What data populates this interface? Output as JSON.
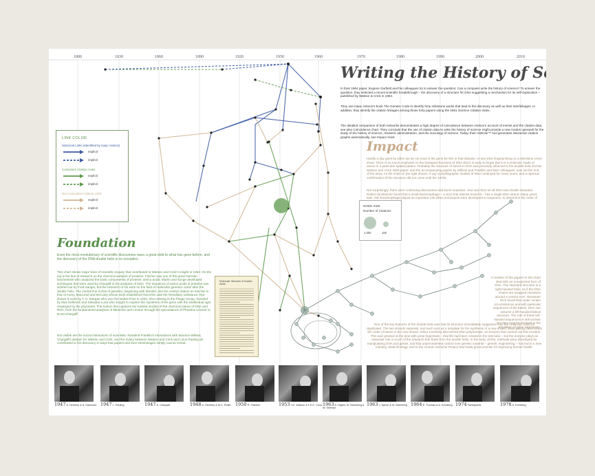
{
  "title": "Writing the History of Science",
  "timeline": [
    "1800",
    "1830",
    "1860",
    "1890",
    "1920",
    "1950",
    "1960",
    "1970",
    "1980",
    "1990",
    "2000",
    "2010"
  ],
  "intro": [
    "In their 1964 paper, Eugene Garfield and his colleagues try to answer the question: Can a computer write the history of science? To answer the question, they selected a recent scientific breakthrough – the discovery of a structure for DNA suggesting a mechanism for its self-duplication – published by Watson & Crick in 1953.",
    "They use Isaac Asimov's book The Genetic Code to identify forty milestone works that lead to the discovery as well as their interlinkages. In addition, they identify the citation linkages among those forty papers using the 1961 Science Citation Index.",
    "The detailed comparison of both networks demonstrates a high degree of coincidence between Asimov's account of events and the citation data, see also Coincidence chart. They conclude that the use of citation data to write the history of science might provide a new modus operandi for the study of the history of science, research administration, and the sociology of science. Today, their HistCite™ tool generates interactive citation graphs automatically, see Impact chart."
  ],
  "impact": {
    "heading": "Impact",
    "p1": "Hardly a day goes by when we do not read of the gene for this or that disease, or see DNA fingerprinting on a television crime show. There is so much emphasis on the biological functions of DNA that it is easy to forget that it is a molecule made of atoms in a particular spatial pattern. Probably the structure of atoms in DNA was precisely what led to the double helix but the Watson and Crick 1953 paper, and the accompanying papers by Wilkins and Franklin and their colleagues, was not the end of the story. As the chart on the right shows, X-ray crystallographic studies of DNA continued for many years, and a rigorous confirmation of the structure did not come until the 1970s.",
    "p2": "Not surprisingly, there were continuing discoveries and some surprises. One was that not all DNA was double stranded. Robert Sinsheimer found that a small bacteriophage – a virus that attacks bacteria – has a single DNA strand. Many years later, this bacteriophage played an important role when techniques were developed to sequence, to determine the order of the bases in DNA.",
    "p3": "A number of the papers in this chart deal with an unexpected form of DNA. The standard structure is a right-handed helix, as if the DNA chains are wrapped clockwise around a central core. Alexander Rich found that under certain circumstances and with particular sequences of the bases, DNA can assume a left-handed helical structure. The role of these left-handed sequences is still unclear but they may be involved in the regulation of gene expression.",
    "p4": "One of the key features of the double helix was that its structure immediately suggested how the molecule could be duplicated. The two strands separate, and each acts as a template for the synthesis of a new strand. Base pairing determines the order of bases in the new strand. Arthur Kornberg discovered DNA polymerase, an enzyme that carried out that reaction. This was greeted at the time with great hyperbole – that life had been created in the test tube – but the enzyme plays an essential role in much of the research that flows from the double helix. In the early 1970s, methods were developed for manipulating DNA and genes, and that unprecedented control over genetic material – genetic engineering – has led to a new industry, biotechnology, and to the Human Genome Project that holds great promise for improving human health."
  },
  "foundation": {
    "heading": "Foundation",
    "p1": "Even the most revolutionary of scientific discoveries owes a great debt to what has gone before, and the discovery of the DNA double helix is no exception.",
    "p2": "This chart shows major lines of scientific enquiry that contributed to Watson and Crick's insight in 1953. On the top is the line of research on the chemical analysis of proteins. Fischer was one of the great German biochemists who analyzed the basic components of proteins: amino acids. Martin and Synge developed techniques that were used by Chargaff in his analyses of DNA. The sequence of amino acids in proteins was worked out by Fred Sanger, but the research of his work on the field of molecular genetics came after the double helix. The central line is that of genetics, beginning with Mendel, and the central citation on this line is that of Avery, MacLeod and McCarty whose work established that DNA was the hereditary substance. Not shown is work by T. H. Morgan who won the Nobel Prize in 1933. Also missing is the Phage Group, founded by Max Delbrück and Salvador Luria who sought to explore the mysteries of the gene with the intellectual rigor employed by the physicists. The bottom line captures the earliest studies of the chemical nature of DNA and RNA, from the fundamental analyses of Miescher and Levene through the speculations of Phoebus Levene to Ernst Chargaff.",
    "p3": "Not visible are the social interactions of scientists. Rosalind Franklin's interactions with Maurice Wilkins, Chargaff's disdain for Watson and Crick, and the rivalry between Watson and Crick and Linus Pauling all contributed to the discovery in ways that papers and their interlinkages simply cannot reveal."
  },
  "legend": {
    "heading": "LINK COLOR",
    "groups": [
      {
        "label": "Historical Links (Identified by Isaac Asimov)",
        "color": "#3b5aa3",
        "explicit": "explicit",
        "implicit": "implicit"
      },
      {
        "label": "Coincident Citation Links",
        "color": "#5e9a4e",
        "explicit": "explicit",
        "implicit": "implicit"
      },
      {
        "label": "Non-Coincident Citation Links",
        "color": "#cfb592",
        "explicit": "explicit",
        "implicit": "implicit"
      }
    ]
  },
  "node_size": {
    "title": "NODE SIZE",
    "subtitle": "Number of Citations",
    "label_large": "1,000",
    "label_small": "100"
  },
  "document": {
    "title": "Molecular Structure of Nucleic Acids"
  },
  "photos": [
    {
      "year": "1947",
      "caption": "A. Hershey & A. Gassman"
    },
    {
      "year": "1947",
      "caption": "L. Pauling"
    },
    {
      "year": "1947",
      "caption": "E. Chargaff"
    },
    {
      "year": "1948",
      "caption": "A. Hershey & M.C. Roller"
    },
    {
      "year": "1950",
      "caption": "R. Franklin"
    },
    {
      "year": "1953",
      "caption": "J.D. Watson & F.H.C. Crick"
    },
    {
      "year": "1963",
      "caption": "A. Hayes, M. Nirenberg & W. Sherwin"
    },
    {
      "year": "1963",
      "caption": "J. Spizer & M. Nirenberg"
    },
    {
      "year": "1964",
      "caption": "E. Thomas & A. Kornberg"
    },
    {
      "year": "1974",
      "caption": "Participants"
    },
    {
      "year": "1978",
      "caption": "A. Kornberg"
    }
  ],
  "colors": {
    "historical": "#3b5aa3",
    "coincident": "#5e9a4e",
    "noncoincident": "#cfb592",
    "title": "#4a4a4a",
    "impact": "#c7ac8d",
    "foundation": "#5a8f4c"
  }
}
